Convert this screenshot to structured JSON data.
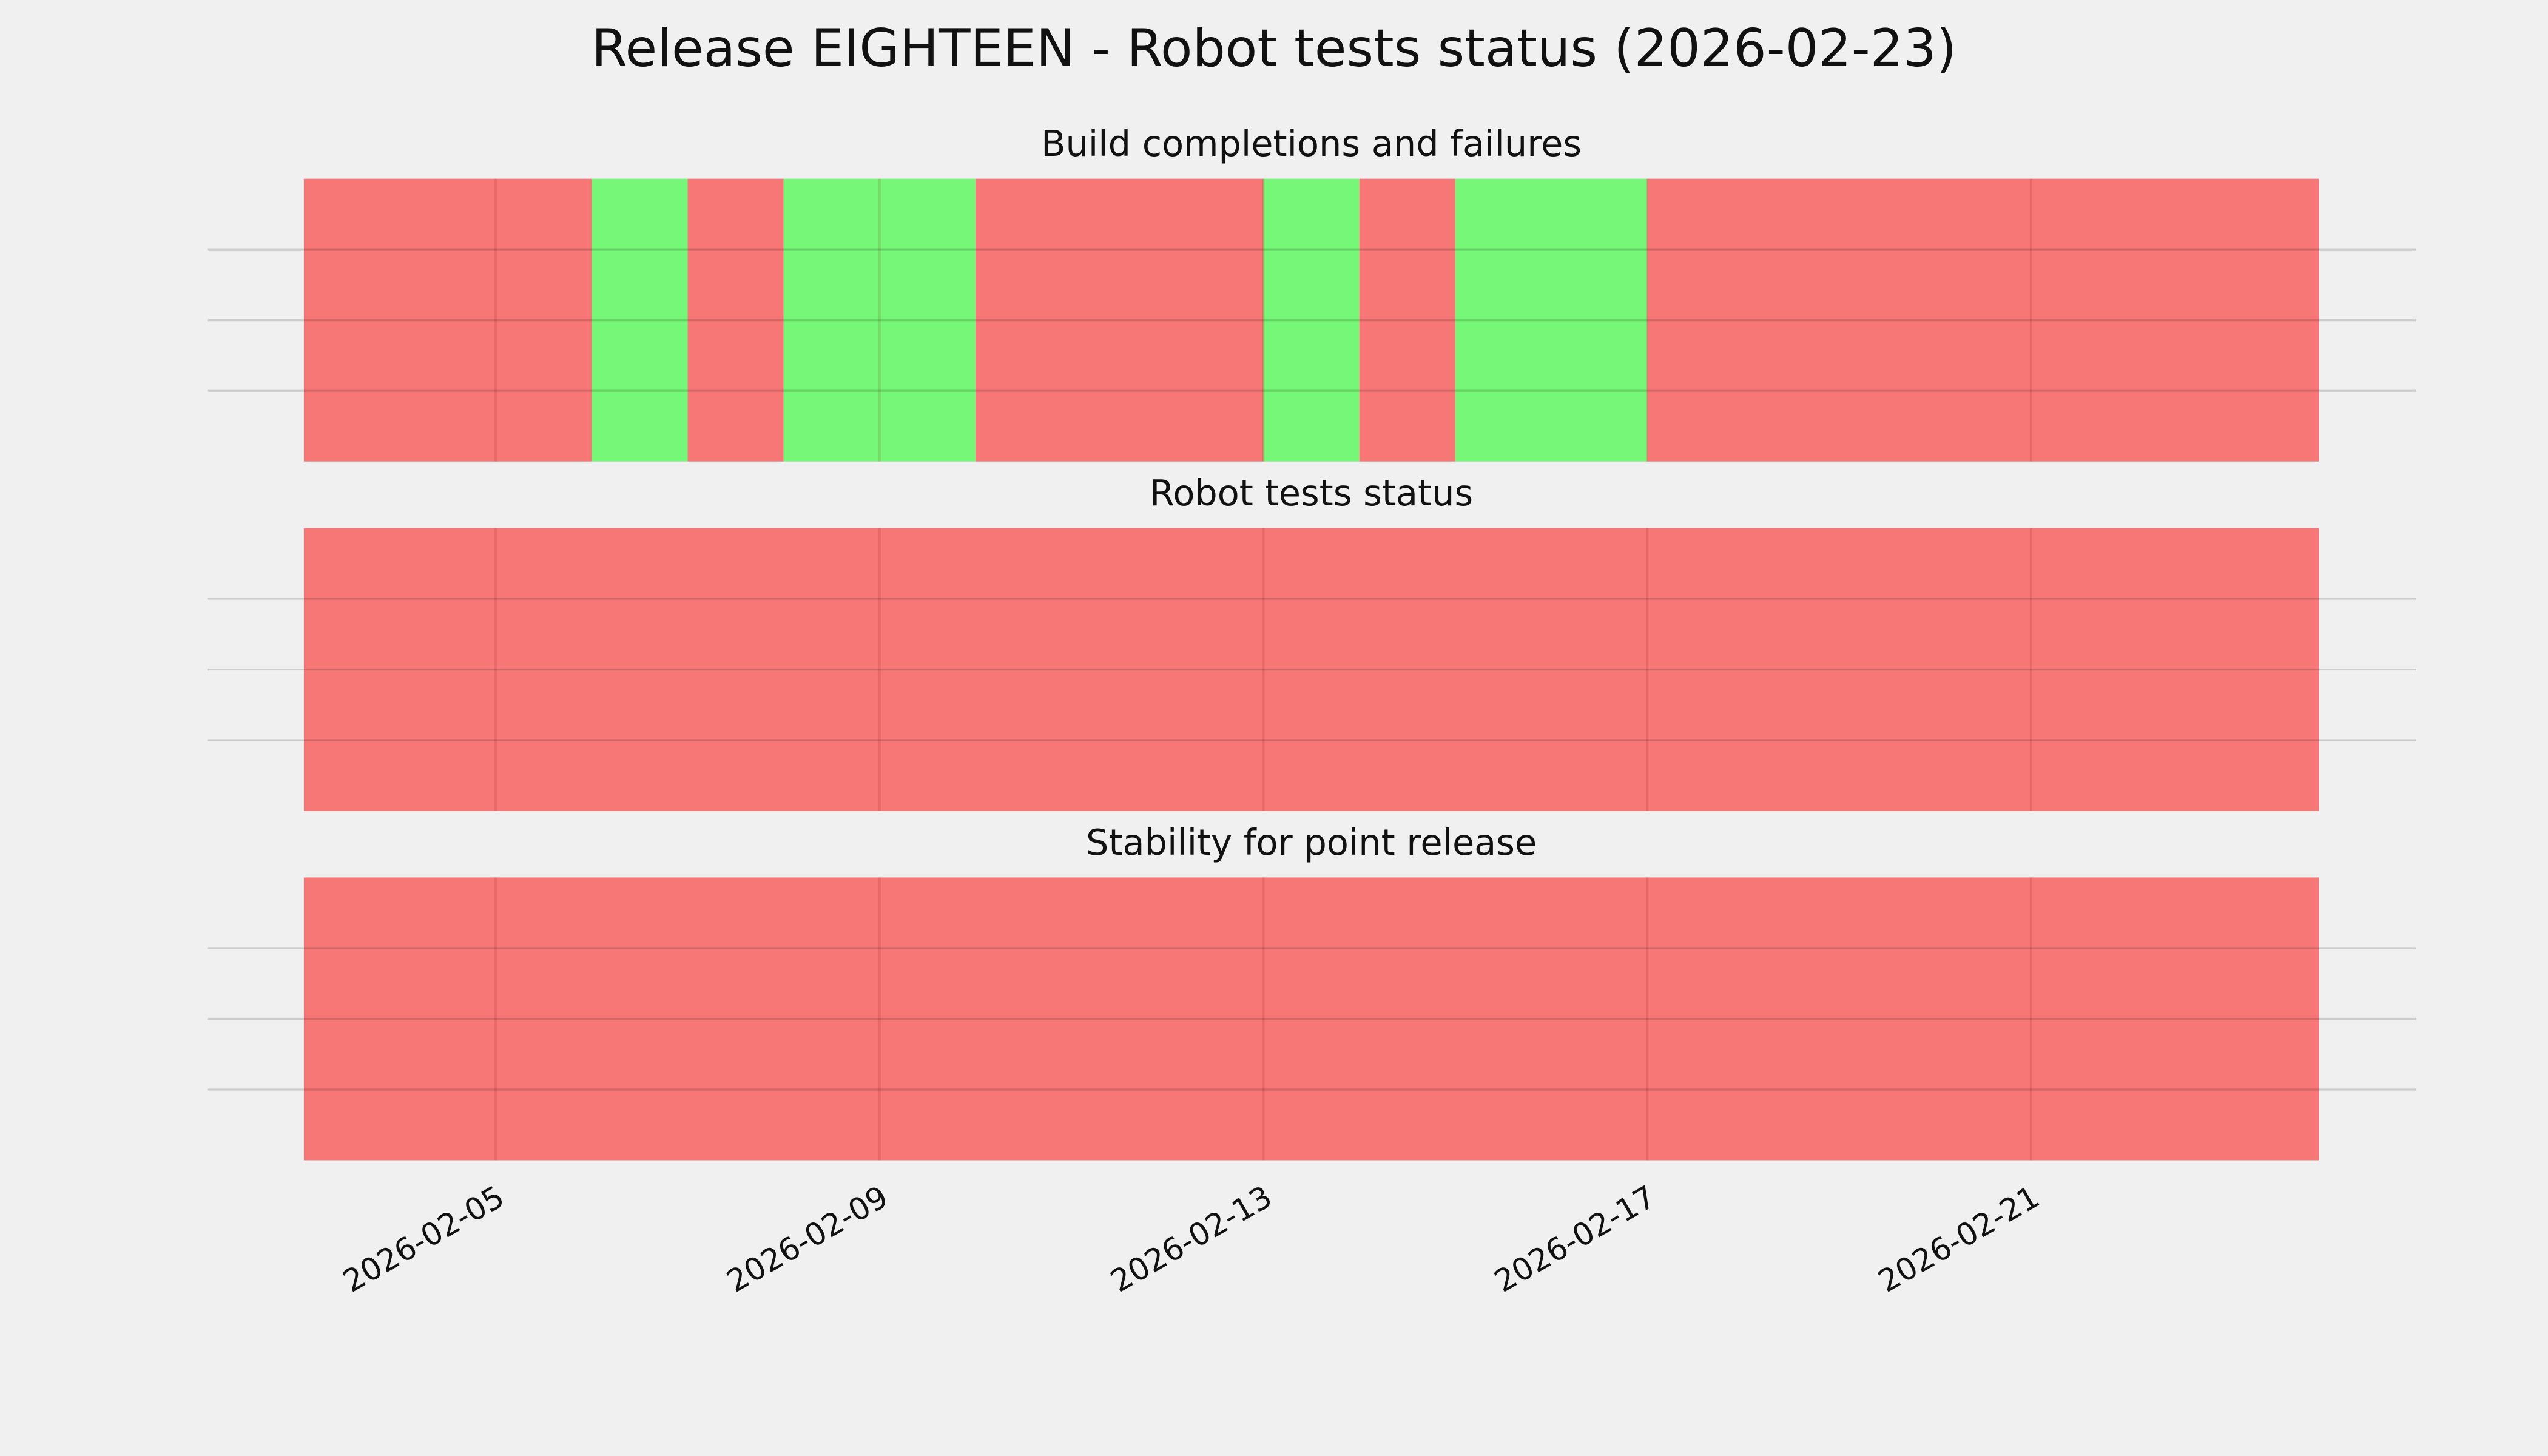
{
  "title": "Release EIGHTEEN - Robot tests status (2026-02-23)",
  "chart_data": [
    {
      "type": "span",
      "title": "Build completions and failures",
      "xlim": [
        "2026-02-03",
        "2026-02-24"
      ],
      "xticks": [
        "2026-02-05",
        "2026-02-09",
        "2026-02-13",
        "2026-02-17",
        "2026-02-21"
      ],
      "ylim": [
        0,
        1
      ],
      "yticks": [
        0.25,
        0.5,
        0.75
      ],
      "grid": true,
      "spans": [
        {
          "start": "2026-02-03",
          "end": "2026-02-06",
          "color": "#f77777"
        },
        {
          "start": "2026-02-06",
          "end": "2026-02-07",
          "color": "#77f777"
        },
        {
          "start": "2026-02-07",
          "end": "2026-02-08",
          "color": "#f77777"
        },
        {
          "start": "2026-02-08",
          "end": "2026-02-10",
          "color": "#77f777"
        },
        {
          "start": "2026-02-10",
          "end": "2026-02-13",
          "color": "#f77777"
        },
        {
          "start": "2026-02-13",
          "end": "2026-02-14",
          "color": "#77f777"
        },
        {
          "start": "2026-02-14",
          "end": "2026-02-15",
          "color": "#f77777"
        },
        {
          "start": "2026-02-15",
          "end": "2026-02-17",
          "color": "#77f777"
        },
        {
          "start": "2026-02-17",
          "end": "2026-02-24",
          "color": "#f77777"
        }
      ]
    },
    {
      "type": "span",
      "title": "Robot tests status",
      "xlim": [
        "2026-02-03",
        "2026-02-24"
      ],
      "xticks": [
        "2026-02-05",
        "2026-02-09",
        "2026-02-13",
        "2026-02-17",
        "2026-02-21"
      ],
      "ylim": [
        0,
        1
      ],
      "yticks": [
        0.25,
        0.5,
        0.75
      ],
      "grid": true,
      "spans": [
        {
          "start": "2026-02-03",
          "end": "2026-02-24",
          "color": "#f77777"
        }
      ]
    },
    {
      "type": "span",
      "title": "Stability for point release",
      "xlim": [
        "2026-02-03",
        "2026-02-24"
      ],
      "xticks": [
        "2026-02-05",
        "2026-02-09",
        "2026-02-13",
        "2026-02-17",
        "2026-02-21"
      ],
      "ylim": [
        0,
        1
      ],
      "yticks": [
        0.25,
        0.5,
        0.75
      ],
      "grid": true,
      "spans": [
        {
          "start": "2026-02-03",
          "end": "2026-02-24",
          "color": "#f77777"
        }
      ]
    }
  ]
}
